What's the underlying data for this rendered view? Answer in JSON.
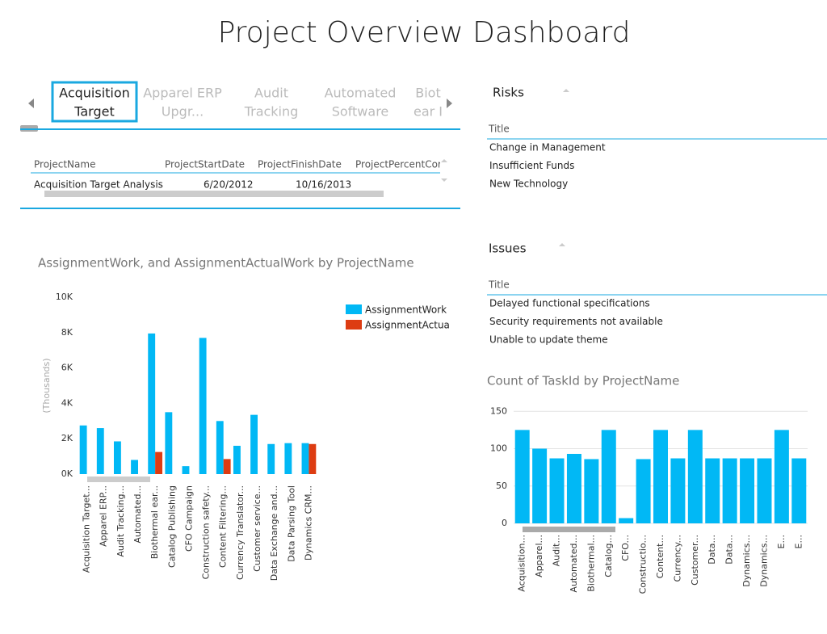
{
  "header": {
    "title": "Project Overview Dashboard"
  },
  "tiles": [
    [
      "Acquisition",
      "Target"
    ],
    [
      "Apparel ERP",
      "Upgr..."
    ],
    [
      "Audit",
      "Tracking"
    ],
    [
      "Automated",
      "Software"
    ],
    [
      "Biot",
      "ear I"
    ]
  ],
  "table": {
    "columns": [
      "ProjectName",
      "ProjectStartDate",
      "ProjectFinishDate",
      "ProjectPercentCor"
    ],
    "rows": [
      [
        "Acquisition Target Analysis",
        "6/20/2012",
        "10/16/2013"
      ]
    ]
  },
  "risks": {
    "title": "Risks",
    "column": "Title",
    "rows": [
      "Change in Management",
      "Insufficient Funds",
      "New Technology"
    ]
  },
  "issues": {
    "title": "Issues",
    "column": "Title",
    "rows": [
      "Delayed functional specifications",
      "Security requirements not available",
      "Unable to update theme"
    ]
  },
  "chart_data": [
    {
      "type": "bar",
      "title": "AssignmentWork, and AssignmentActualWork by ProjectName",
      "y_label": "(Thousands)",
      "categories": [
        "Acquisition Target...",
        "Apparel ERP...",
        "Audit Tracking...",
        "Automated...",
        "Biothermal ear...",
        "Catalog Publishing",
        "CFO Campaign",
        "Construction safety...",
        "Content Filtering...",
        "Currency Translator...",
        "Customer service...",
        "Data Exchange and...",
        "Data Parsing Tool",
        "Dynamics CRM..."
      ],
      "series": [
        {
          "name": "AssignmentWork",
          "color": "#01b8f5",
          "values": [
            2750,
            2600,
            1850,
            800,
            7950,
            3500,
            450,
            7700,
            3000,
            1600,
            3350,
            1700,
            1750,
            1750
          ]
        },
        {
          "name": "AssignmentActualWork",
          "color": "#dd3c12",
          "values": [
            0,
            0,
            0,
            0,
            1250,
            0,
            0,
            0,
            850,
            0,
            0,
            0,
            0,
            1700
          ]
        }
      ],
      "ylim": [
        0,
        10000
      ],
      "yticks": [
        {
          "value": 0,
          "label": "0K"
        },
        {
          "value": 2000,
          "label": "2K"
        },
        {
          "value": 4000,
          "label": "4K"
        },
        {
          "value": 6000,
          "label": "6K"
        },
        {
          "value": 8000,
          "label": "8K"
        },
        {
          "value": 10000,
          "label": "10K"
        }
      ],
      "grid": false
    },
    {
      "type": "bar",
      "title": "Count of TaskId by ProjectName",
      "categories": [
        "Acquisition...",
        "Apparel...",
        "Audit...",
        "Automated...",
        "Biothermal...",
        "Catalog...",
        "CFO...",
        "Constructio...",
        "Content...",
        "Currency...",
        "Customer...",
        "Data...",
        "Data...",
        "Dynamics...",
        "Dynamics...",
        "E...",
        "E..."
      ],
      "values": [
        125,
        100,
        87,
        93,
        86,
        125,
        7,
        86,
        125,
        87,
        125,
        87,
        87,
        87,
        87,
        125,
        87
      ],
      "color": "#01b8f5",
      "ylim": [
        0,
        160
      ],
      "yticks": [
        0,
        50,
        100,
        150
      ],
      "grid": true
    }
  ]
}
